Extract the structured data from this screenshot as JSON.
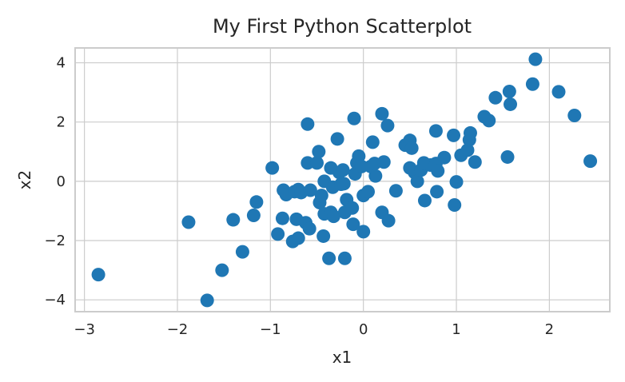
{
  "chart_data": {
    "type": "scatter",
    "title": "My First Python Scatterplot",
    "xlabel": "x1",
    "ylabel": "x2",
    "xlim": [
      -3.1,
      2.65
    ],
    "ylim": [
      -4.4,
      4.5
    ],
    "xticks": [
      -3,
      -2,
      -1,
      0,
      1,
      2
    ],
    "xtick_labels": [
      "−3",
      "−2",
      "−1",
      "0",
      "1",
      "2"
    ],
    "yticks": [
      -4,
      -2,
      0,
      2,
      4
    ],
    "ytick_labels": [
      "−4",
      "−2",
      "0",
      "2",
      "4"
    ],
    "grid": true,
    "marker_color": "#1f77b4",
    "points": [
      {
        "x": -2.85,
        "y": -3.15
      },
      {
        "x": -1.88,
        "y": -1.38
      },
      {
        "x": -1.68,
        "y": -4.02
      },
      {
        "x": -1.52,
        "y": -3.0
      },
      {
        "x": -1.4,
        "y": -1.3
      },
      {
        "x": -1.3,
        "y": -2.38
      },
      {
        "x": -1.18,
        "y": -1.15
      },
      {
        "x": -1.15,
        "y": -0.7
      },
      {
        "x": -0.98,
        "y": 0.45
      },
      {
        "x": -0.92,
        "y": -1.78
      },
      {
        "x": -0.87,
        "y": -1.25
      },
      {
        "x": -0.86,
        "y": -0.3
      },
      {
        "x": -0.83,
        "y": -0.45
      },
      {
        "x": -0.76,
        "y": -2.03
      },
      {
        "x": -0.74,
        "y": -0.35
      },
      {
        "x": -0.72,
        "y": -1.28
      },
      {
        "x": -0.7,
        "y": -1.92
      },
      {
        "x": -0.7,
        "y": -0.28
      },
      {
        "x": -0.67,
        "y": -0.38
      },
      {
        "x": -0.62,
        "y": -1.4
      },
      {
        "x": -0.6,
        "y": 0.62
      },
      {
        "x": -0.6,
        "y": 1.93
      },
      {
        "x": -0.58,
        "y": -1.6
      },
      {
        "x": -0.57,
        "y": -0.3
      },
      {
        "x": -0.5,
        "y": 0.62
      },
      {
        "x": -0.48,
        "y": 1.0
      },
      {
        "x": -0.47,
        "y": -0.72
      },
      {
        "x": -0.45,
        "y": -0.48
      },
      {
        "x": -0.43,
        "y": -1.85
      },
      {
        "x": -0.42,
        "y": -1.1
      },
      {
        "x": -0.42,
        "y": 0.0
      },
      {
        "x": -0.37,
        "y": -2.6
      },
      {
        "x": -0.35,
        "y": 0.45
      },
      {
        "x": -0.35,
        "y": -1.05
      },
      {
        "x": -0.33,
        "y": -0.2
      },
      {
        "x": -0.32,
        "y": -1.18
      },
      {
        "x": -0.28,
        "y": 1.43
      },
      {
        "x": -0.26,
        "y": 0.3
      },
      {
        "x": -0.24,
        "y": -0.1
      },
      {
        "x": -0.22,
        "y": 0.38
      },
      {
        "x": -0.21,
        "y": -0.08
      },
      {
        "x": -0.2,
        "y": -1.05
      },
      {
        "x": -0.18,
        "y": -0.62
      },
      {
        "x": -0.2,
        "y": -2.6
      },
      {
        "x": -0.12,
        "y": -0.9
      },
      {
        "x": -0.11,
        "y": -1.45
      },
      {
        "x": -0.1,
        "y": 2.12
      },
      {
        "x": -0.09,
        "y": 0.25
      },
      {
        "x": -0.07,
        "y": 0.62
      },
      {
        "x": -0.05,
        "y": 0.85
      },
      {
        "x": -0.02,
        "y": 0.5
      },
      {
        "x": 0.0,
        "y": -1.7
      },
      {
        "x": 0.0,
        "y": -0.48
      },
      {
        "x": 0.05,
        "y": -0.35
      },
      {
        "x": 0.08,
        "y": 0.5
      },
      {
        "x": 0.1,
        "y": 1.32
      },
      {
        "x": 0.12,
        "y": 0.6
      },
      {
        "x": 0.13,
        "y": 0.18
      },
      {
        "x": 0.2,
        "y": -1.05
      },
      {
        "x": 0.2,
        "y": 2.28
      },
      {
        "x": 0.22,
        "y": 0.65
      },
      {
        "x": 0.26,
        "y": 1.88
      },
      {
        "x": 0.27,
        "y": -1.33
      },
      {
        "x": 0.35,
        "y": -0.32
      },
      {
        "x": 0.45,
        "y": 1.22
      },
      {
        "x": 0.5,
        "y": 1.38
      },
      {
        "x": 0.5,
        "y": 0.45
      },
      {
        "x": 0.52,
        "y": 1.12
      },
      {
        "x": 0.55,
        "y": 0.3
      },
      {
        "x": 0.58,
        "y": 0.0
      },
      {
        "x": 0.62,
        "y": 0.38
      },
      {
        "x": 0.65,
        "y": 0.62
      },
      {
        "x": 0.66,
        "y": -0.65
      },
      {
        "x": 0.72,
        "y": 0.55
      },
      {
        "x": 0.78,
        "y": 0.6
      },
      {
        "x": 0.78,
        "y": 1.7
      },
      {
        "x": 0.8,
        "y": 0.35
      },
      {
        "x": 0.79,
        "y": -0.35
      },
      {
        "x": 0.87,
        "y": 0.8
      },
      {
        "x": 0.97,
        "y": 1.55
      },
      {
        "x": 0.98,
        "y": -0.8
      },
      {
        "x": 1.0,
        "y": -0.02
      },
      {
        "x": 1.05,
        "y": 0.88
      },
      {
        "x": 1.12,
        "y": 1.05
      },
      {
        "x": 1.14,
        "y": 1.4
      },
      {
        "x": 1.15,
        "y": 1.63
      },
      {
        "x": 1.2,
        "y": 0.65
      },
      {
        "x": 1.3,
        "y": 2.18
      },
      {
        "x": 1.35,
        "y": 2.05
      },
      {
        "x": 1.42,
        "y": 2.82
      },
      {
        "x": 1.55,
        "y": 0.82
      },
      {
        "x": 1.57,
        "y": 3.03
      },
      {
        "x": 1.58,
        "y": 2.6
      },
      {
        "x": 1.82,
        "y": 3.28
      },
      {
        "x": 1.85,
        "y": 4.12
      },
      {
        "x": 2.1,
        "y": 3.02
      },
      {
        "x": 2.27,
        "y": 2.22
      },
      {
        "x": 2.44,
        "y": 0.68
      }
    ]
  }
}
